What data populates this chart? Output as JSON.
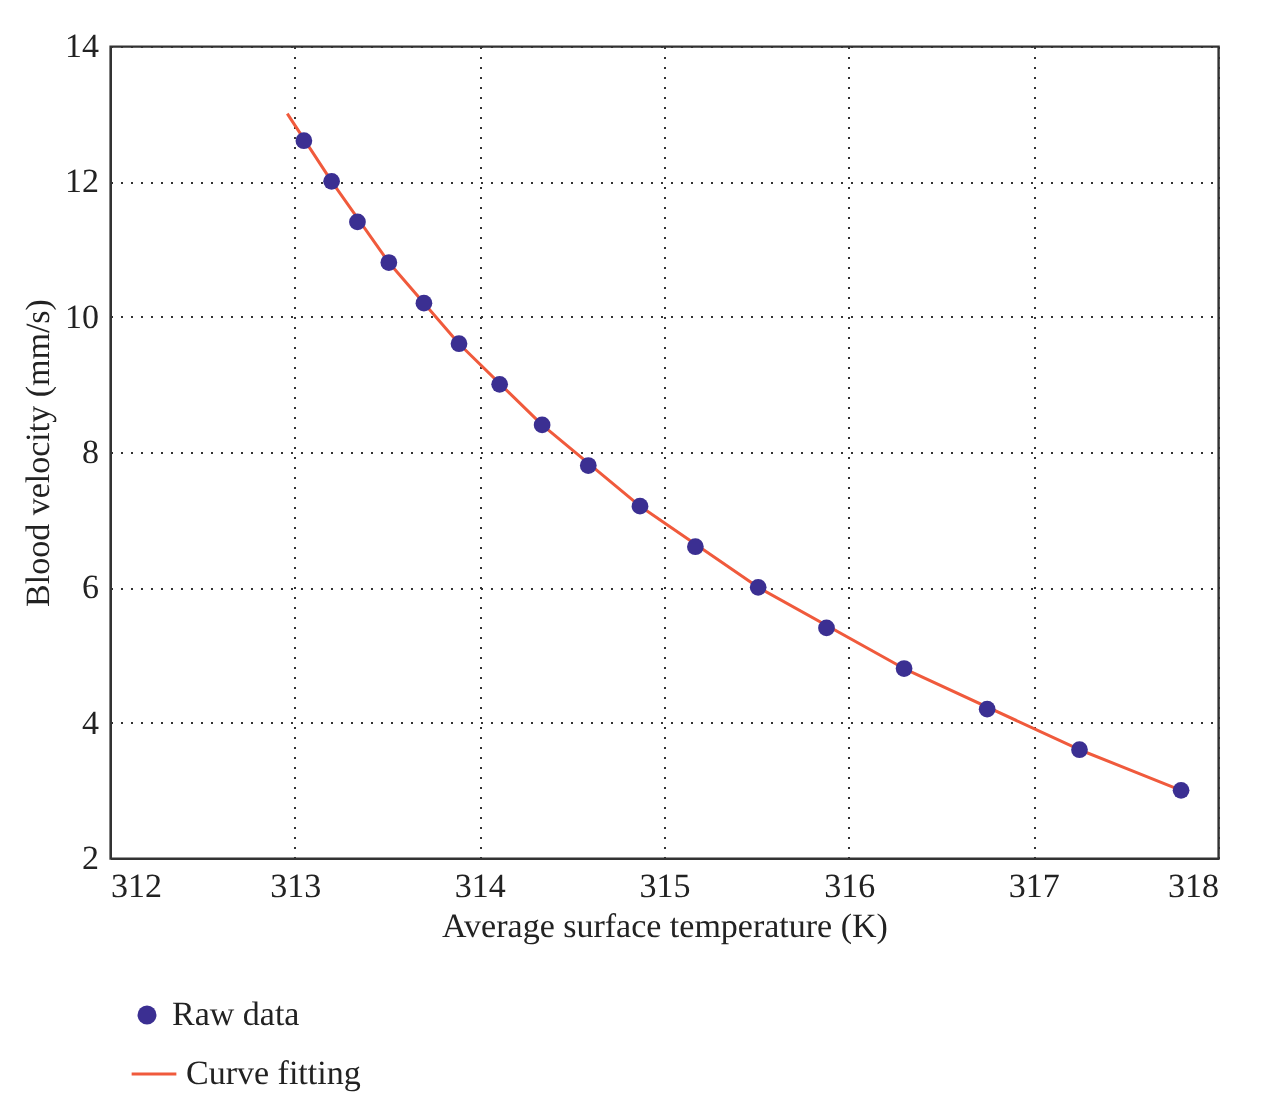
{
  "chart_data": {
    "type": "scatter",
    "xlabel": "Average surface temperature (K)",
    "ylabel": "Blood velocity (mm/s)",
    "xlim": [
      312,
      318
    ],
    "xticks": [
      312,
      313,
      314,
      315,
      316,
      317,
      318
    ],
    "ylim": [
      2,
      14
    ],
    "yticks": [
      2,
      4,
      6,
      8,
      10,
      12,
      14
    ],
    "grid": true,
    "legend": "bottom",
    "series": [
      {
        "name": "Raw data",
        "marker": "circle",
        "color": "#3b2f92",
        "x": [
          313.05,
          313.2,
          313.34,
          313.51,
          313.7,
          313.89,
          314.11,
          314.34,
          314.59,
          314.87,
          315.17,
          315.51,
          315.88,
          316.3,
          316.75,
          317.25,
          317.8
        ],
        "values": [
          12.6,
          12.0,
          11.4,
          10.8,
          10.2,
          9.6,
          9.0,
          8.4,
          7.8,
          7.2,
          6.6,
          6.0,
          5.4,
          4.8,
          4.2,
          3.6,
          3.0
        ]
      },
      {
        "name": "Curve fitting",
        "type": "line",
        "color": "#f05a3c",
        "line_style": "solid",
        "x": [
          312.96,
          313.2,
          313.51,
          313.89,
          314.34,
          314.87,
          315.51,
          316.3,
          317.25,
          317.8
        ],
        "values": [
          13.0,
          12.0,
          10.8,
          9.6,
          8.4,
          7.2,
          6.0,
          4.8,
          3.6,
          3.0
        ]
      }
    ]
  }
}
